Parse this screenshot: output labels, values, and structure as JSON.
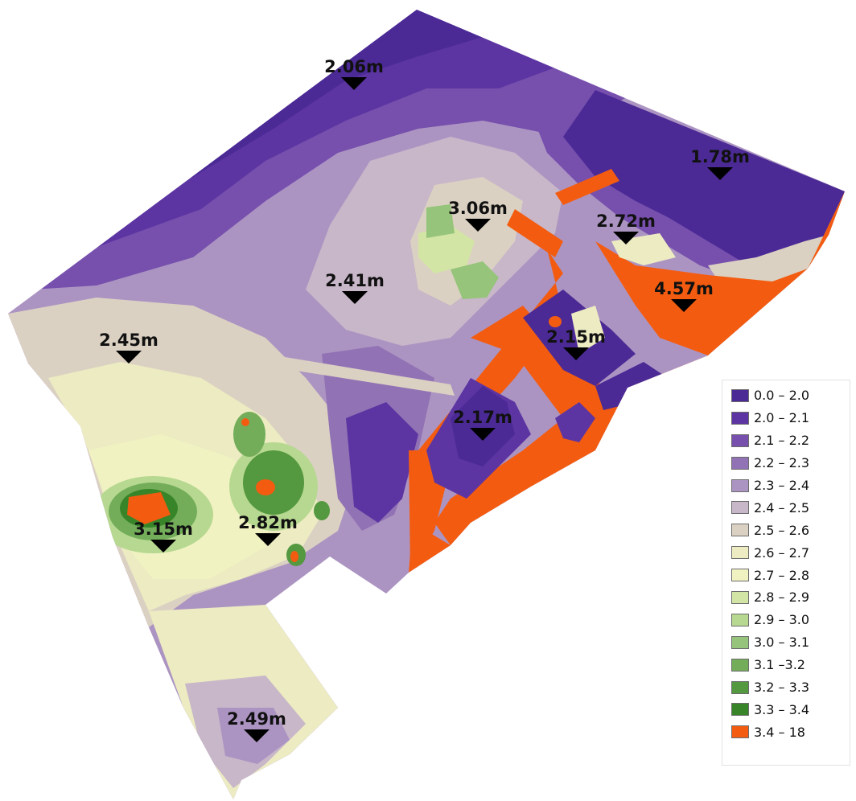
{
  "legend": {
    "items": [
      {
        "label": "0.0 – 2.0",
        "color": "#4b2a96"
      },
      {
        "label": "2.0 – 2.1",
        "color": "#5c35a2"
      },
      {
        "label": "2.1 – 2.2",
        "color": "#7750ad"
      },
      {
        "label": "2.2 – 2.3",
        "color": "#9172b4"
      },
      {
        "label": "2.3 – 2.4",
        "color": "#ac94c2"
      },
      {
        "label": "2.4 – 2.5",
        "color": "#c8b6c9"
      },
      {
        "label": "2.5 – 2.6",
        "color": "#dbd1c2"
      },
      {
        "label": "2.6 – 2.7",
        "color": "#ecebc2"
      },
      {
        "label": "2.7 – 2.8",
        "color": "#f0f2c1"
      },
      {
        "label": "2.8 – 2.9",
        "color": "#d3e5a4"
      },
      {
        "label": "2.9 – 3.0",
        "color": "#b6d890"
      },
      {
        "label": "3.0 – 3.1",
        "color": "#95c47a"
      },
      {
        "label": "3.1 –3.2",
        "color": "#73ad5a"
      },
      {
        "label": "3.2 – 3.3",
        "color": "#54983f"
      },
      {
        "label": "3.3 – 3.4",
        "color": "#388529"
      },
      {
        "label": "3.4 – 18",
        "color": "#f35c10"
      }
    ]
  },
  "markers": [
    {
      "label": "2.06m",
      "color": "#000000"
    },
    {
      "label": "1.78m",
      "color": "#000000"
    },
    {
      "label": "3.06m",
      "color": "#000000"
    },
    {
      "label": "2.72m",
      "color": "#000000"
    },
    {
      "label": "2.41m",
      "color": "#000000"
    },
    {
      "label": "4.57m",
      "color": "#000000"
    },
    {
      "label": "2.45m",
      "color": "#000000"
    },
    {
      "label": "2.15m",
      "color": "#000000"
    },
    {
      "label": "2.17m",
      "color": "#000000"
    },
    {
      "label": "3.15m",
      "color": "#000000"
    },
    {
      "label": "2.82m",
      "color": "#000000"
    },
    {
      "label": "2.49m",
      "color": "#000000"
    }
  ]
}
